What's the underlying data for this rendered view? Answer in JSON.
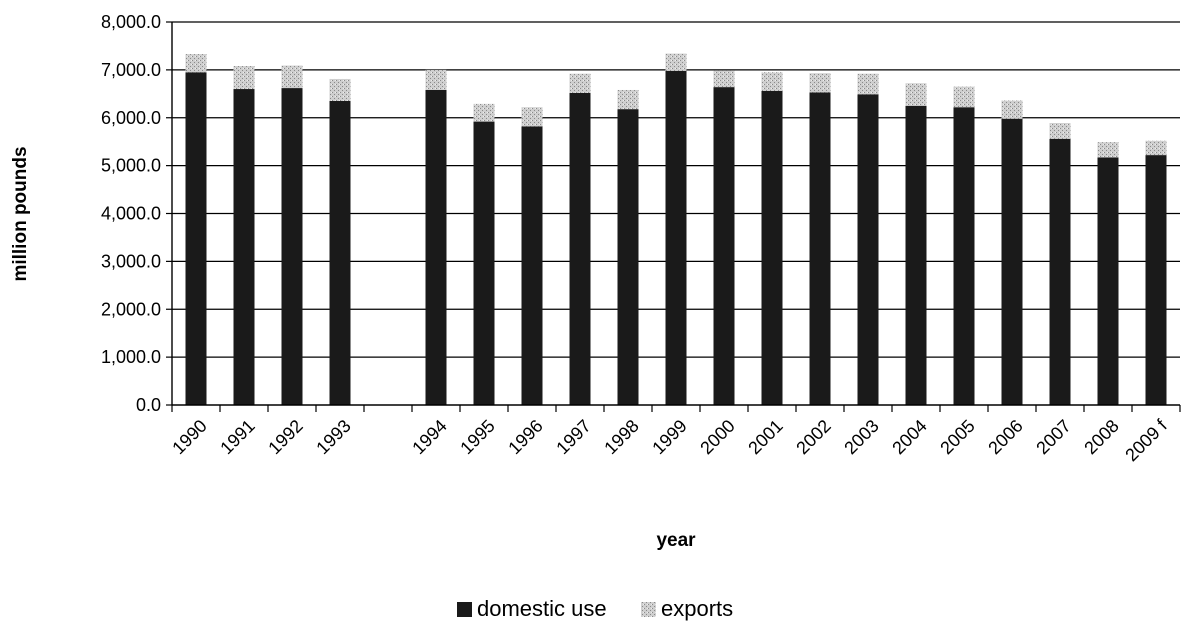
{
  "chart_data": {
    "type": "bar",
    "stacked": true,
    "xlabel": "year",
    "ylabel": "million pounds",
    "ylim": [
      0,
      8000
    ],
    "ytick_step": 1000,
    "ytick_labels": [
      "0.0",
      "1,000.0",
      "2,000.0",
      "3,000.0",
      "4,000.0",
      "5,000.0",
      "6,000.0",
      "7,000.0",
      "8,000.0"
    ],
    "grid": true,
    "legend": "bottom-center",
    "categories": [
      "1990",
      "1991",
      "1992",
      "1993",
      "",
      "1994",
      "1995",
      "1996",
      "1997",
      "1998",
      "1999",
      "2000",
      "2001",
      "2002",
      "2003",
      "2004",
      "2005",
      "2006",
      "2007",
      "2008",
      "2009 f"
    ],
    "series": [
      {
        "name": "domestic use",
        "color": "#1a1a1a",
        "values": [
          6950,
          6600,
          6620,
          6350,
          null,
          6580,
          5920,
          5820,
          6520,
          6180,
          6980,
          6640,
          6560,
          6530,
          6490,
          6250,
          6220,
          5980,
          5560,
          5170,
          5220
        ]
      },
      {
        "name": "exports",
        "color": "#b8b8b8",
        "values": [
          380,
          480,
          470,
          460,
          null,
          420,
          370,
          400,
          400,
          400,
          360,
          340,
          390,
          400,
          430,
          470,
          430,
          380,
          330,
          320,
          300
        ]
      }
    ]
  }
}
